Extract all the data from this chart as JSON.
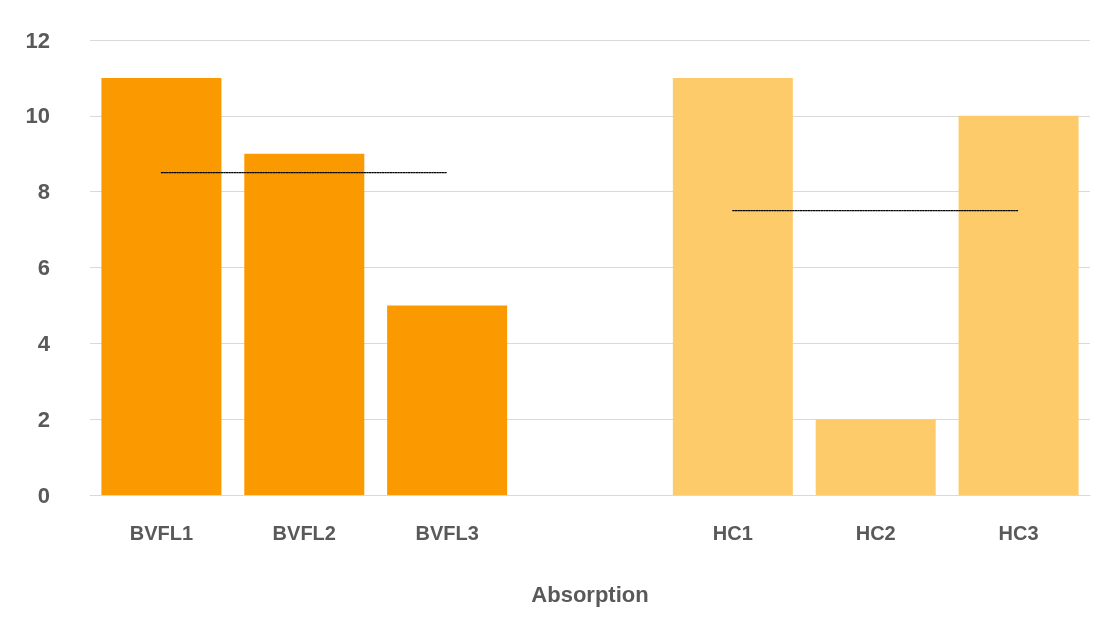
{
  "chart_data": {
    "type": "bar",
    "xlabel": "Absorption",
    "categories": [
      "BVFL1",
      "BVFL2",
      "BVFL3",
      null,
      "HC1",
      "HC2",
      "HC3"
    ],
    "series": [
      {
        "values": [
          11,
          9,
          5,
          null,
          11,
          2,
          10
        ],
        "colors": [
          "#fb9900",
          "#fb9900",
          "#fb9900",
          "#fb9900",
          "#fecb6a",
          "#fecb6a",
          "#fecb6a"
        ]
      },
      {
        "type": "line",
        "values": [
          8.5,
          8.5,
          8.5,
          null,
          null,
          null,
          null
        ],
        "color": "#000000",
        "line_style": "dotted",
        "marker": "none"
      },
      {
        "type": "line",
        "values": [
          null,
          null,
          null,
          null,
          7.5,
          7.5,
          7.5
        ],
        "color": "#000000",
        "line_style": "dotted",
        "marker": "none"
      }
    ],
    "ylim": [
      0,
      12
    ],
    "yticks": [
      0,
      2,
      4,
      6,
      8,
      10,
      12
    ],
    "grid": "y"
  }
}
